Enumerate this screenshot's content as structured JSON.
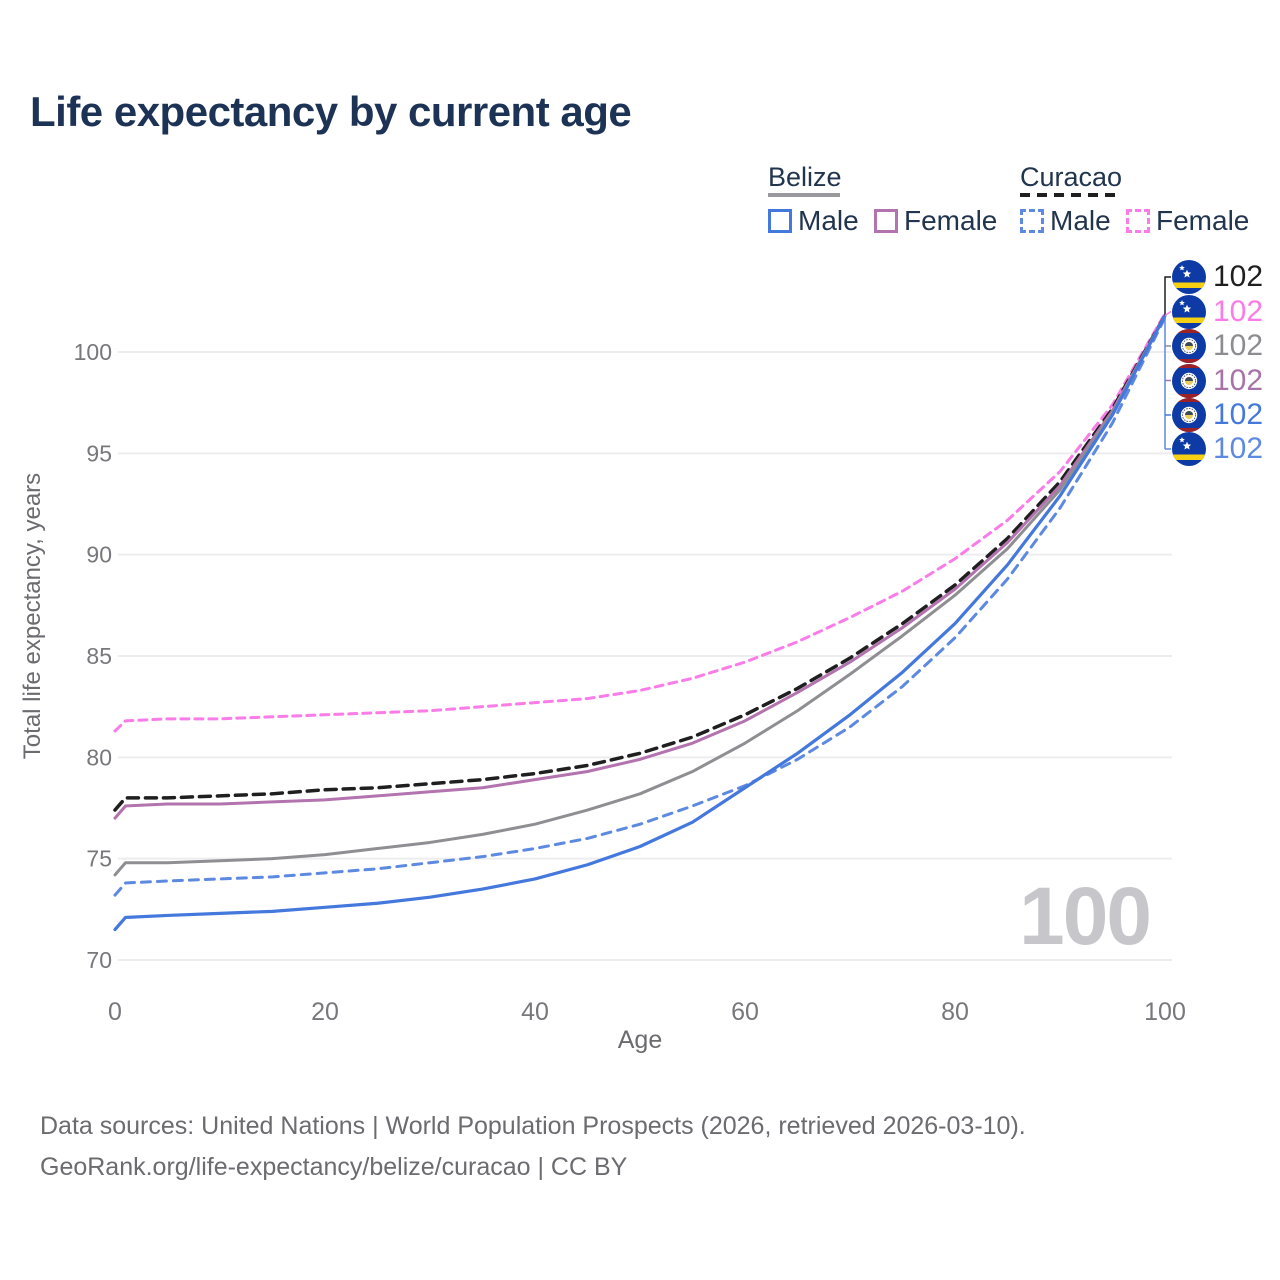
{
  "title": "Life expectancy by current age",
  "legend": {
    "groups": [
      {
        "country": "Belize",
        "items": [
          {
            "label": "Male"
          },
          {
            "label": "Female"
          }
        ]
      },
      {
        "country": "Curacao",
        "items": [
          {
            "label": "Male"
          },
          {
            "label": "Female"
          }
        ]
      }
    ]
  },
  "chart_data": {
    "type": "line",
    "x": [
      0,
      1,
      5,
      10,
      15,
      20,
      25,
      30,
      35,
      40,
      45,
      50,
      55,
      60,
      65,
      70,
      75,
      80,
      85,
      90,
      95,
      100
    ],
    "series": [
      {
        "name": "Curacao Female",
        "country": "curacao",
        "color": "#f97ce8",
        "dash": "8 6",
        "width": 3,
        "values": [
          81.3,
          81.8,
          81.9,
          81.9,
          82.0,
          82.1,
          82.2,
          82.3,
          82.5,
          82.7,
          82.9,
          83.3,
          83.9,
          84.7,
          85.7,
          86.9,
          88.2,
          89.8,
          91.7,
          94.1,
          97.4,
          101.9
        ]
      },
      {
        "name": "Curacao",
        "country": "curacao",
        "color": "#1f1f1f",
        "dash": "11 7",
        "width": 3.5,
        "values": [
          77.4,
          78.0,
          78.0,
          78.1,
          78.2,
          78.4,
          78.5,
          78.7,
          78.9,
          79.2,
          79.6,
          80.2,
          81.0,
          82.1,
          83.4,
          84.9,
          86.6,
          88.5,
          90.8,
          93.6,
          97.2,
          101.8
        ]
      },
      {
        "name": "Belize Female",
        "country": "belize",
        "color": "#b273ae",
        "dash": "",
        "width": 3,
        "values": [
          77.0,
          77.6,
          77.7,
          77.7,
          77.8,
          77.9,
          78.1,
          78.3,
          78.5,
          78.9,
          79.3,
          79.9,
          80.7,
          81.8,
          83.2,
          84.7,
          86.4,
          88.3,
          90.6,
          93.4,
          97.1,
          101.8
        ]
      },
      {
        "name": "Belize",
        "country": "belize",
        "color": "#8f8f93",
        "dash": "",
        "width": 3,
        "values": [
          74.2,
          74.8,
          74.8,
          74.9,
          75.0,
          75.2,
          75.5,
          75.8,
          76.2,
          76.7,
          77.4,
          78.2,
          79.3,
          80.7,
          82.3,
          84.1,
          86.0,
          88.0,
          90.3,
          93.2,
          97.0,
          101.8
        ]
      },
      {
        "name": "Curacao Male",
        "country": "curacao",
        "color": "#5d89e0",
        "dash": "9 7",
        "width": 3,
        "values": [
          73.2,
          73.8,
          73.9,
          74.0,
          74.1,
          74.3,
          74.5,
          74.8,
          75.1,
          75.5,
          76.0,
          76.7,
          77.6,
          78.6,
          79.9,
          81.5,
          83.5,
          85.9,
          88.8,
          92.3,
          96.5,
          101.7
        ]
      },
      {
        "name": "Belize Male",
        "country": "belize",
        "color": "#4478dd",
        "dash": "",
        "width": 3.2,
        "values": [
          71.5,
          72.1,
          72.2,
          72.3,
          72.4,
          72.6,
          72.8,
          73.1,
          73.5,
          74.0,
          74.7,
          75.6,
          76.8,
          78.5,
          80.2,
          82.1,
          84.2,
          86.6,
          89.5,
          92.9,
          96.9,
          101.8
        ]
      }
    ],
    "xlabel": "Age",
    "ylabel": "Total life expectancy, years",
    "xticks": [
      0,
      20,
      40,
      60,
      80,
      100
    ],
    "yticks": [
      70,
      75,
      80,
      85,
      90,
      95,
      100
    ],
    "xlim": [
      0,
      100
    ],
    "ylim": [
      68.5,
      103
    ],
    "grid": "horizontal",
    "legend_position": "top-right"
  },
  "end_labels": [
    {
      "flag": "curacao",
      "value": "102",
      "color": "#1f1f1f"
    },
    {
      "flag": "curacao",
      "value": "102",
      "color": "#f97ce8"
    },
    {
      "flag": "belize",
      "value": "102",
      "color": "#8d8d91"
    },
    {
      "flag": "belize",
      "value": "102",
      "color": "#a873a8"
    },
    {
      "flag": "belize",
      "value": "102",
      "color": "#4478dd"
    },
    {
      "flag": "curacao",
      "value": "102",
      "color": "#5d89e0"
    }
  ],
  "watermark": "100",
  "footer": {
    "line1": "Data sources: United Nations | World Population Prospects (2026, retrieved 2026-03-10).",
    "line2": "GeoRank.org/life-expectancy/belize/curacao | CC BY"
  },
  "colors": {
    "title": "#1d3356",
    "axis_text": "#6b6b70",
    "tick_text": "#77777c",
    "gridline": "#ededef",
    "watermark": "#c7c7cb"
  }
}
